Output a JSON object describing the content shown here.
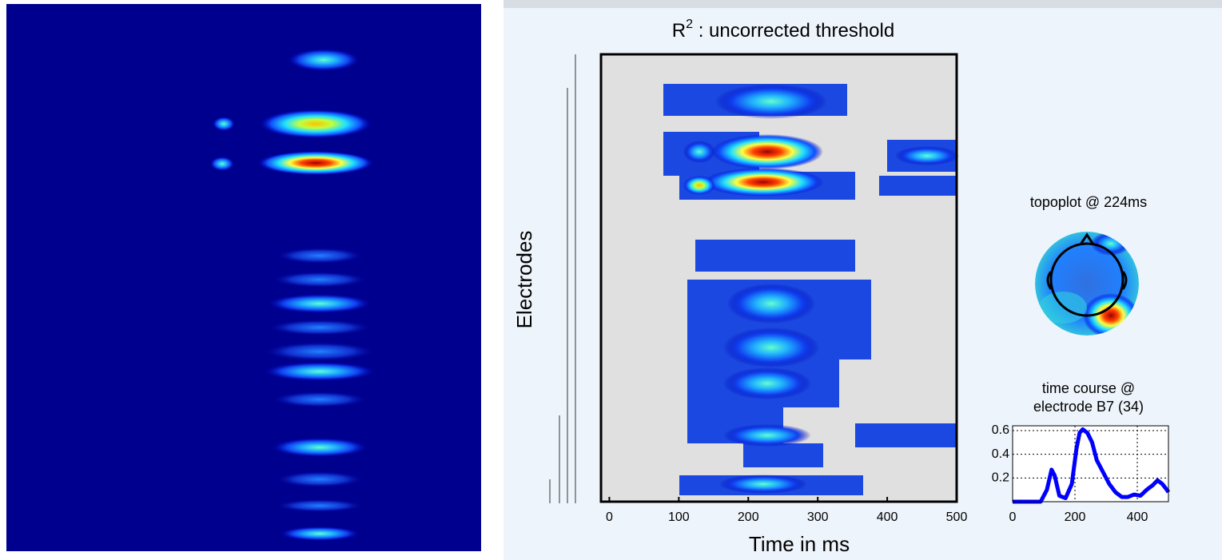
{
  "chart_data": [
    {
      "type": "heatmap",
      "title": {
        "base": "R",
        "superscript": "2",
        "rest": " : uncorrected threshold"
      },
      "xlabel": "Time in ms",
      "ylabel": "Electrodes",
      "xlim": [
        -12,
        500
      ],
      "xticks": [
        0,
        100,
        200,
        300,
        400,
        500
      ]
    },
    {
      "type": "topoplot",
      "title": "topoplot @ 224ms"
    },
    {
      "type": "line",
      "title": [
        "time course @",
        "electrode B7 (34)"
      ],
      "x": [
        0,
        90,
        110,
        125,
        135,
        150,
        170,
        190,
        205,
        215,
        225,
        240,
        255,
        270,
        290,
        310,
        330,
        350,
        370,
        390,
        410,
        430,
        450,
        465,
        480,
        495,
        500
      ],
      "series": [
        {
          "color": "#0000ff",
          "values": [
            0,
            0,
            0.1,
            0.27,
            0.22,
            0.05,
            0.03,
            0.15,
            0.45,
            0.58,
            0.61,
            0.58,
            0.5,
            0.35,
            0.25,
            0.15,
            0.08,
            0.04,
            0.04,
            0.06,
            0.05,
            0.1,
            0.14,
            0.18,
            0.15,
            0.1,
            0.08
          ]
        }
      ],
      "xlim": [
        0,
        500
      ],
      "ylim": [
        0,
        0.64
      ],
      "xticks": [
        0,
        200,
        400
      ],
      "yticks": [
        0.2,
        0.4,
        0.6
      ],
      "grid": true
    }
  ]
}
